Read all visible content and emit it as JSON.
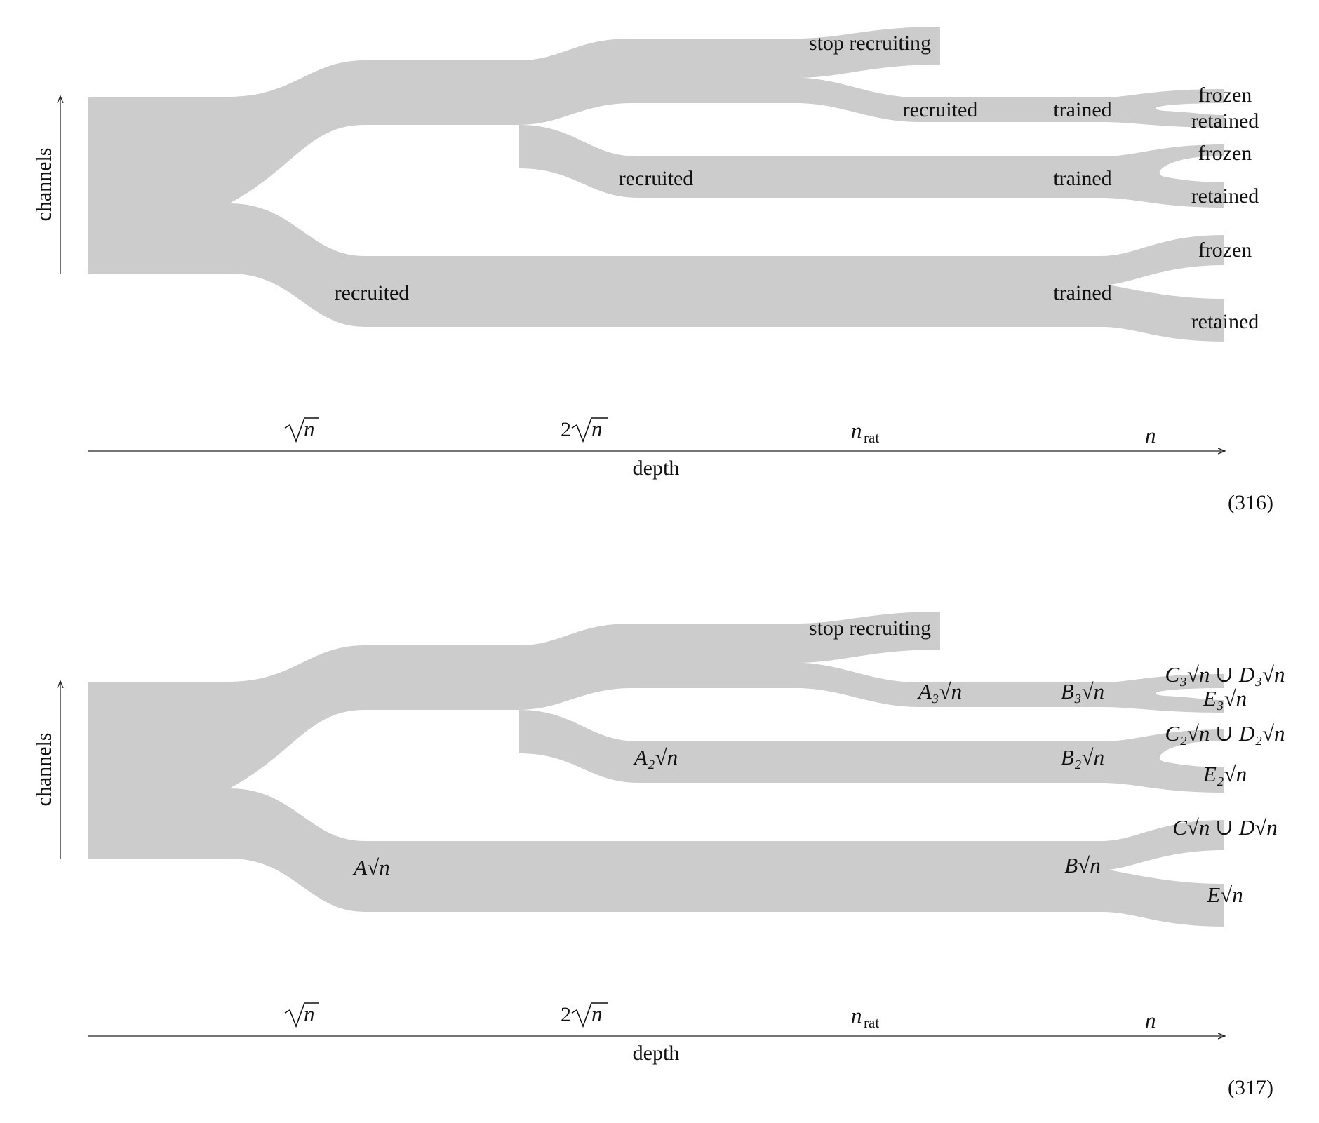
{
  "colors": {
    "band": "#cccccc",
    "ink": "#111111"
  },
  "figures": [
    {
      "id": "316",
      "equation_number": "(316)",
      "y_axis_label": "channels",
      "x_axis_label": "depth",
      "ticks": {
        "t1": "√n",
        "t2": "2√n",
        "t3_base": "n",
        "t3_sub": "rat",
        "t4": "n"
      },
      "labels": {
        "stop": "stop recruiting",
        "rec_top": "recruited",
        "rec_mid": "recruited",
        "rec_bot": "recruited",
        "tr_top": "trained",
        "tr_mid": "trained",
        "tr_bot": "trained",
        "frozen_top": "frozen",
        "retained_top": "retained",
        "frozen_mid": "frozen",
        "retained_mid": "retained",
        "frozen_bot": "frozen",
        "retained_bot": "retained"
      }
    },
    {
      "id": "317",
      "equation_number": "(317)",
      "y_axis_label": "channels",
      "x_axis_label": "depth",
      "ticks": {
        "t1": "√n",
        "t2": "2√n",
        "t3_base": "n",
        "t3_sub": "rat",
        "t4": "n"
      },
      "labels": {
        "stop": "stop recruiting",
        "A3": "A₃√n",
        "A2": "A₂√n",
        "A1": "A√n",
        "B3": "B₃√n",
        "B2": "B₂√n",
        "B1": "B√n",
        "CD3": "C₃√n ∪ D₃√n",
        "E3": "E₃√n",
        "CD2": "C₂√n ∪ D₂√n",
        "E2": "E₂√n",
        "CD1": "C√n ∪ D√n",
        "E1": "E√n"
      }
    }
  ]
}
